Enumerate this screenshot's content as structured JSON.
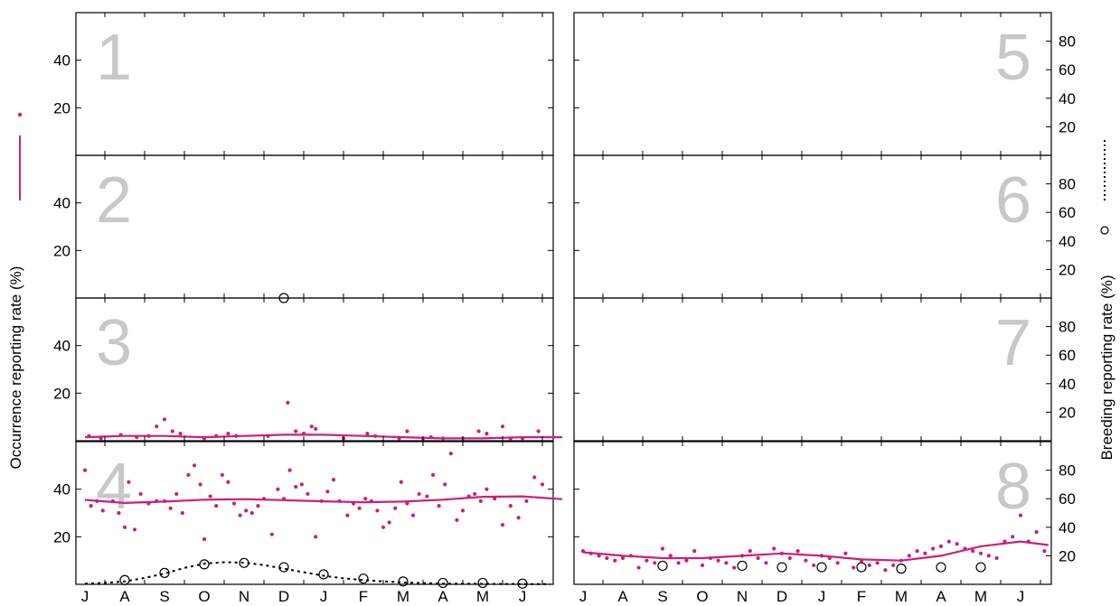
{
  "colors": {
    "occurrence": "#cc1f78",
    "breeding": "#000000",
    "panel_number": "#c8c8c8"
  },
  "left_axis_title": "Occurrence reporting rate (%)",
  "right_axis_title": "Breeding reporting rate (%)",
  "months": [
    "J",
    "A",
    "S",
    "O",
    "N",
    "D",
    "J",
    "F",
    "M",
    "A",
    "M",
    "J"
  ],
  "chart_data": {
    "type": "scatter",
    "layout": "8 small-multiple panels in two columns (1-4 left, 5-8 right)",
    "x_axis": {
      "tick_labels": [
        "J",
        "A",
        "S",
        "O",
        "N",
        "D",
        "J",
        "F",
        "M",
        "A",
        "M",
        "J"
      ],
      "unit": "month of year"
    },
    "left_y_axis": {
      "title": "Occurrence reporting rate (%)",
      "ticks": [
        20,
        40
      ],
      "range": [
        0,
        60
      ]
    },
    "right_y_axis": {
      "title": "Breeding reporting rate (%)",
      "ticks": [
        20,
        40,
        60,
        80
      ],
      "range": [
        0,
        100
      ]
    },
    "legend": {
      "placement": "outside left and right of plot area, vertical",
      "entries": [
        "occurrence points",
        "occurrence smoothed line",
        "breeding points",
        "breeding smoothed line"
      ]
    },
    "panels": [
      {
        "id": "1",
        "column": "left",
        "occurrence_points": [],
        "occurrence_line": [],
        "breeding_points": [],
        "breeding_line": []
      },
      {
        "id": "2",
        "column": "left",
        "occurrence_points": [],
        "occurrence_line": [],
        "breeding_points": [],
        "breeding_line": []
      },
      {
        "id": "3",
        "column": "left",
        "occurrence_points": [
          [
            0.1,
            2
          ],
          [
            0.4,
            1
          ],
          [
            0.9,
            2.5
          ],
          [
            1.3,
            1.5
          ],
          [
            1.6,
            2
          ],
          [
            1.8,
            6
          ],
          [
            2.0,
            9
          ],
          [
            2.2,
            4
          ],
          [
            2.4,
            3
          ],
          [
            3.0,
            1
          ],
          [
            3.3,
            2
          ],
          [
            3.6,
            3
          ],
          [
            3.8,
            2
          ],
          [
            4.6,
            2
          ],
          [
            5.1,
            16
          ],
          [
            5.3,
            4
          ],
          [
            5.5,
            3
          ],
          [
            5.7,
            6
          ],
          [
            5.8,
            5
          ],
          [
            6.5,
            1
          ],
          [
            7.1,
            3
          ],
          [
            7.3,
            2
          ],
          [
            7.9,
            1
          ],
          [
            8.1,
            4
          ],
          [
            8.5,
            1
          ],
          [
            8.7,
            1.5
          ],
          [
            9.0,
            1
          ],
          [
            9.5,
            1
          ],
          [
            9.9,
            4
          ],
          [
            10.1,
            3
          ],
          [
            10.5,
            6
          ],
          [
            10.7,
            1
          ],
          [
            11.0,
            1
          ],
          [
            11.4,
            4
          ]
        ],
        "occurrence_line": [
          [
            0,
            1.5
          ],
          [
            1,
            2
          ],
          [
            2,
            2
          ],
          [
            3,
            1.5
          ],
          [
            4,
            2
          ],
          [
            5,
            2.5
          ],
          [
            6,
            2.5
          ],
          [
            7,
            2
          ],
          [
            8,
            1.5
          ],
          [
            9,
            1
          ],
          [
            10,
            1
          ],
          [
            11,
            1.5
          ],
          [
            12,
            1.5
          ]
        ],
        "breeding_points": [
          [
            5.0,
            160
          ]
        ],
        "breeding_line": []
      },
      {
        "id": "4",
        "column": "left",
        "occurrence_points": [
          [
            0,
            48
          ],
          [
            0.15,
            33
          ],
          [
            0.3,
            35
          ],
          [
            0.45,
            31
          ],
          [
            0.7,
            35
          ],
          [
            0.85,
            30
          ],
          [
            1.0,
            24
          ],
          [
            1.1,
            43
          ],
          [
            1.25,
            23
          ],
          [
            1.4,
            38
          ],
          [
            1.6,
            34
          ],
          [
            1.8,
            35
          ],
          [
            2.0,
            35
          ],
          [
            2.15,
            32
          ],
          [
            2.3,
            38
          ],
          [
            2.45,
            30
          ],
          [
            2.6,
            46
          ],
          [
            2.75,
            50
          ],
          [
            2.9,
            42
          ],
          [
            3.0,
            19
          ],
          [
            3.15,
            37
          ],
          [
            3.3,
            33
          ],
          [
            3.45,
            46
          ],
          [
            3.6,
            43
          ],
          [
            3.75,
            34
          ],
          [
            3.9,
            29
          ],
          [
            4.05,
            31
          ],
          [
            4.2,
            30
          ],
          [
            4.35,
            33
          ],
          [
            4.5,
            36
          ],
          [
            4.7,
            21
          ],
          [
            4.85,
            40
          ],
          [
            5.0,
            36
          ],
          [
            5.15,
            48
          ],
          [
            5.3,
            41
          ],
          [
            5.45,
            42
          ],
          [
            5.6,
            38
          ],
          [
            5.8,
            20
          ],
          [
            5.95,
            35
          ],
          [
            6.1,
            39
          ],
          [
            6.25,
            44
          ],
          [
            6.4,
            35
          ],
          [
            6.6,
            29
          ],
          [
            6.75,
            34
          ],
          [
            6.9,
            32
          ],
          [
            7.05,
            36
          ],
          [
            7.2,
            35
          ],
          [
            7.35,
            31
          ],
          [
            7.5,
            24
          ],
          [
            7.65,
            26
          ],
          [
            7.8,
            32
          ],
          [
            7.95,
            43
          ],
          [
            8.1,
            34
          ],
          [
            8.25,
            29
          ],
          [
            8.4,
            38
          ],
          [
            8.6,
            37
          ],
          [
            8.75,
            46
          ],
          [
            8.9,
            33
          ],
          [
            9.05,
            42
          ],
          [
            9.2,
            55
          ],
          [
            9.35,
            27
          ],
          [
            9.5,
            31
          ],
          [
            9.65,
            37
          ],
          [
            9.8,
            38
          ],
          [
            9.95,
            35
          ],
          [
            10.1,
            40
          ],
          [
            10.3,
            36
          ],
          [
            10.5,
            25
          ],
          [
            10.7,
            33
          ],
          [
            10.9,
            28
          ],
          [
            11.1,
            35
          ],
          [
            11.3,
            45
          ],
          [
            11.5,
            42
          ]
        ],
        "occurrence_line": [
          [
            0,
            35.5
          ],
          [
            1,
            34.2
          ],
          [
            2,
            34.8
          ],
          [
            3,
            35.6
          ],
          [
            4,
            35.8
          ],
          [
            5,
            35.4
          ],
          [
            6,
            34.9
          ],
          [
            7,
            34.5
          ],
          [
            8,
            34.8
          ],
          [
            9,
            35.6
          ],
          [
            10,
            36.8
          ],
          [
            11,
            37
          ],
          [
            12,
            35.8
          ]
        ],
        "breeding_points": [
          [
            1.0,
            3
          ],
          [
            2.0,
            8
          ],
          [
            3.0,
            14
          ],
          [
            4.0,
            15
          ],
          [
            5.0,
            12
          ],
          [
            6.0,
            7
          ],
          [
            7.0,
            4
          ],
          [
            8.0,
            2
          ],
          [
            9.0,
            1
          ],
          [
            10.0,
            1
          ],
          [
            11.0,
            0.5
          ]
        ],
        "breeding_line": [
          [
            0,
            0.5
          ],
          [
            0.5,
            1
          ],
          [
            1,
            2
          ],
          [
            1.5,
            4.5
          ],
          [
            2,
            7.5
          ],
          [
            2.5,
            11.5
          ],
          [
            3,
            14.5
          ],
          [
            3.5,
            15.5
          ],
          [
            4,
            15.2
          ],
          [
            4.5,
            13.5
          ],
          [
            5,
            11
          ],
          [
            5.5,
            8.5
          ],
          [
            6,
            6
          ],
          [
            6.5,
            4.2
          ],
          [
            7,
            3
          ],
          [
            7.5,
            2
          ],
          [
            8,
            1.3
          ],
          [
            8.5,
            0.8
          ],
          [
            9,
            0.5
          ],
          [
            10,
            0.3
          ],
          [
            11,
            0.2
          ],
          [
            11.7,
            0.2
          ]
        ]
      },
      {
        "id": "5",
        "column": "right",
        "occurrence_points": [],
        "occurrence_line": [],
        "breeding_points": [],
        "breeding_line": []
      },
      {
        "id": "6",
        "column": "right",
        "occurrence_points": [],
        "occurrence_line": [],
        "breeding_points": [],
        "breeding_line": []
      },
      {
        "id": "7",
        "column": "right",
        "occurrence_points": [],
        "occurrence_line": [],
        "breeding_points": [],
        "breeding_line": []
      },
      {
        "id": "8",
        "column": "right",
        "occurrence_points": [
          [
            0,
            14
          ],
          [
            0.2,
            13
          ],
          [
            0.4,
            12
          ],
          [
            0.6,
            11
          ],
          [
            0.8,
            10
          ],
          [
            1.0,
            11
          ],
          [
            1.2,
            12
          ],
          [
            1.4,
            7
          ],
          [
            1.6,
            10
          ],
          [
            1.8,
            9
          ],
          [
            2.0,
            15
          ],
          [
            2.2,
            12
          ],
          [
            2.4,
            9
          ],
          [
            2.6,
            10
          ],
          [
            2.8,
            14
          ],
          [
            3.0,
            8
          ],
          [
            3.2,
            11
          ],
          [
            3.4,
            10
          ],
          [
            3.6,
            9
          ],
          [
            3.8,
            7
          ],
          [
            4.0,
            12
          ],
          [
            4.2,
            14
          ],
          [
            4.4,
            11
          ],
          [
            4.6,
            9
          ],
          [
            4.8,
            15
          ],
          [
            5.0,
            13
          ],
          [
            5.2,
            11
          ],
          [
            5.4,
            14
          ],
          [
            5.6,
            10
          ],
          [
            5.8,
            8
          ],
          [
            6.0,
            12
          ],
          [
            6.2,
            11
          ],
          [
            6.4,
            9
          ],
          [
            6.6,
            13
          ],
          [
            6.8,
            7
          ],
          [
            7.0,
            10
          ],
          [
            7.2,
            8
          ],
          [
            7.4,
            9
          ],
          [
            7.6,
            6
          ],
          [
            7.8,
            8
          ],
          [
            8.0,
            10
          ],
          [
            8.2,
            12
          ],
          [
            8.4,
            14
          ],
          [
            8.6,
            13
          ],
          [
            8.8,
            15
          ],
          [
            9.0,
            16
          ],
          [
            9.2,
            18
          ],
          [
            9.4,
            17
          ],
          [
            9.6,
            15
          ],
          [
            9.8,
            14
          ],
          [
            10.0,
            13
          ],
          [
            10.2,
            12
          ],
          [
            10.4,
            11
          ],
          [
            10.6,
            18
          ],
          [
            10.8,
            20
          ],
          [
            11.0,
            29
          ],
          [
            11.2,
            18
          ],
          [
            11.4,
            22
          ],
          [
            11.6,
            14
          ]
        ],
        "occurrence_line": [
          [
            0,
            13.5
          ],
          [
            1,
            12
          ],
          [
            2,
            11
          ],
          [
            3,
            11
          ],
          [
            4,
            12
          ],
          [
            5,
            13
          ],
          [
            6,
            12
          ],
          [
            7,
            10.5
          ],
          [
            8,
            10
          ],
          [
            9,
            12
          ],
          [
            10,
            16
          ],
          [
            11,
            18
          ],
          [
            11.7,
            16.5
          ]
        ],
        "breeding_points": [
          [
            2.0,
            13
          ],
          [
            4.0,
            13
          ],
          [
            5.0,
            12
          ],
          [
            6.0,
            12
          ],
          [
            7.0,
            12
          ],
          [
            8.0,
            11
          ],
          [
            9.0,
            12
          ],
          [
            10.0,
            12
          ]
        ],
        "breeding_line": []
      }
    ]
  }
}
